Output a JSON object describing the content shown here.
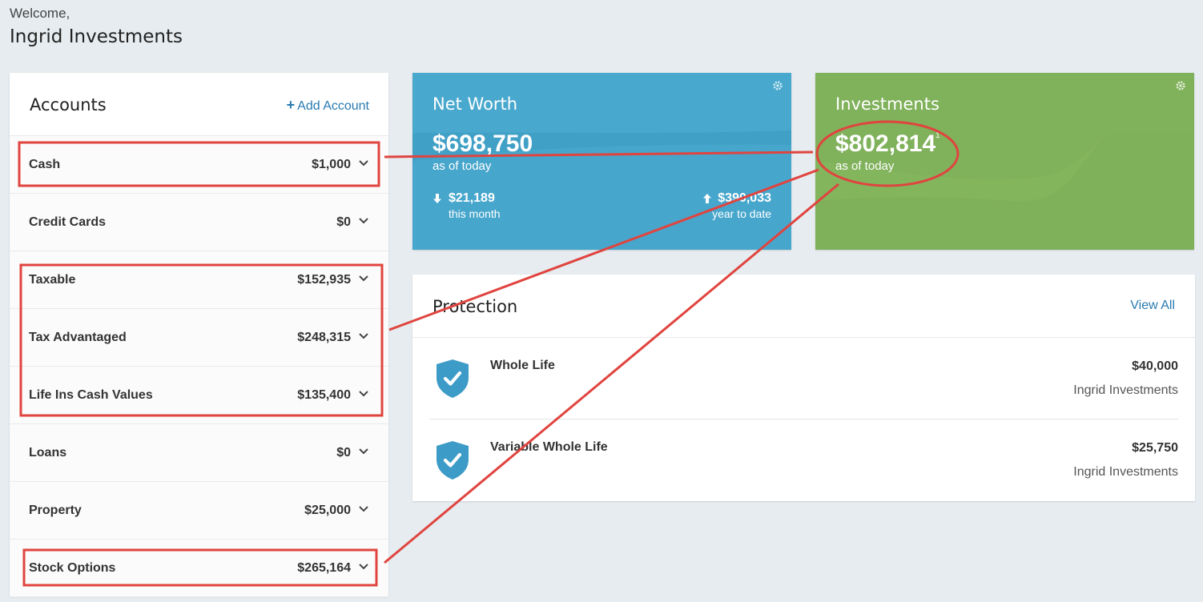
{
  "header": {
    "welcome": "Welcome,",
    "user_name": "Ingrid Investments"
  },
  "accounts": {
    "title": "Accounts",
    "add_label": "Add Account",
    "add_icon": "plus-icon",
    "rows": [
      {
        "label": "Cash",
        "amount": "$1,000"
      },
      {
        "label": "Credit Cards",
        "amount": "$0"
      },
      {
        "label": "Taxable",
        "amount": "$152,935"
      },
      {
        "label": "Tax Advantaged",
        "amount": "$248,315"
      },
      {
        "label": "Life Ins Cash Values",
        "amount": "$135,400"
      },
      {
        "label": "Loans",
        "amount": "$0"
      },
      {
        "label": "Property",
        "amount": "$25,000"
      },
      {
        "label": "Stock Options",
        "amount": "$265,164"
      }
    ]
  },
  "net_worth": {
    "title": "Net Worth",
    "amount": "$698,750",
    "as_of": "as of today",
    "month_change": "$21,189",
    "month_label": "this month",
    "ytd_change": "$390,033",
    "ytd_label": "year to date",
    "color": "#48a8cd"
  },
  "investments": {
    "title": "Investments",
    "amount": "$802,814",
    "footnote": "1",
    "as_of": "as of today",
    "color": "#80b15b"
  },
  "protection": {
    "title": "Protection",
    "view_all": "View All",
    "policies": [
      {
        "name": "Whole Life",
        "amount": "$40,000",
        "owner": "Ingrid Investments"
      },
      {
        "name": "Variable Whole Life",
        "amount": "$25,750",
        "owner": "Ingrid Investments"
      }
    ]
  },
  "annotation_color": "#e0443f"
}
